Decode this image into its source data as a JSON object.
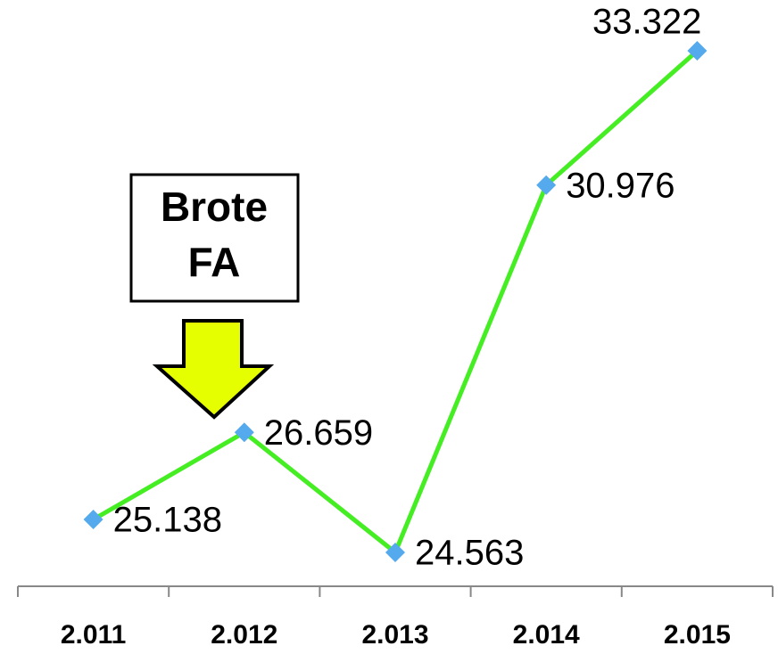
{
  "chart_data": {
    "type": "line",
    "categories": [
      "2.011",
      "2.012",
      "2.013",
      "2.014",
      "2.015"
    ],
    "values": [
      25138,
      26659,
      24563,
      30976,
      33322
    ],
    "value_labels": [
      "25.138",
      "26.659",
      "24.563",
      "30.976",
      "33.322"
    ],
    "color": "#44ee22",
    "marker_color": "#55aaee",
    "annotation": [
      "Brote",
      "FA"
    ]
  }
}
